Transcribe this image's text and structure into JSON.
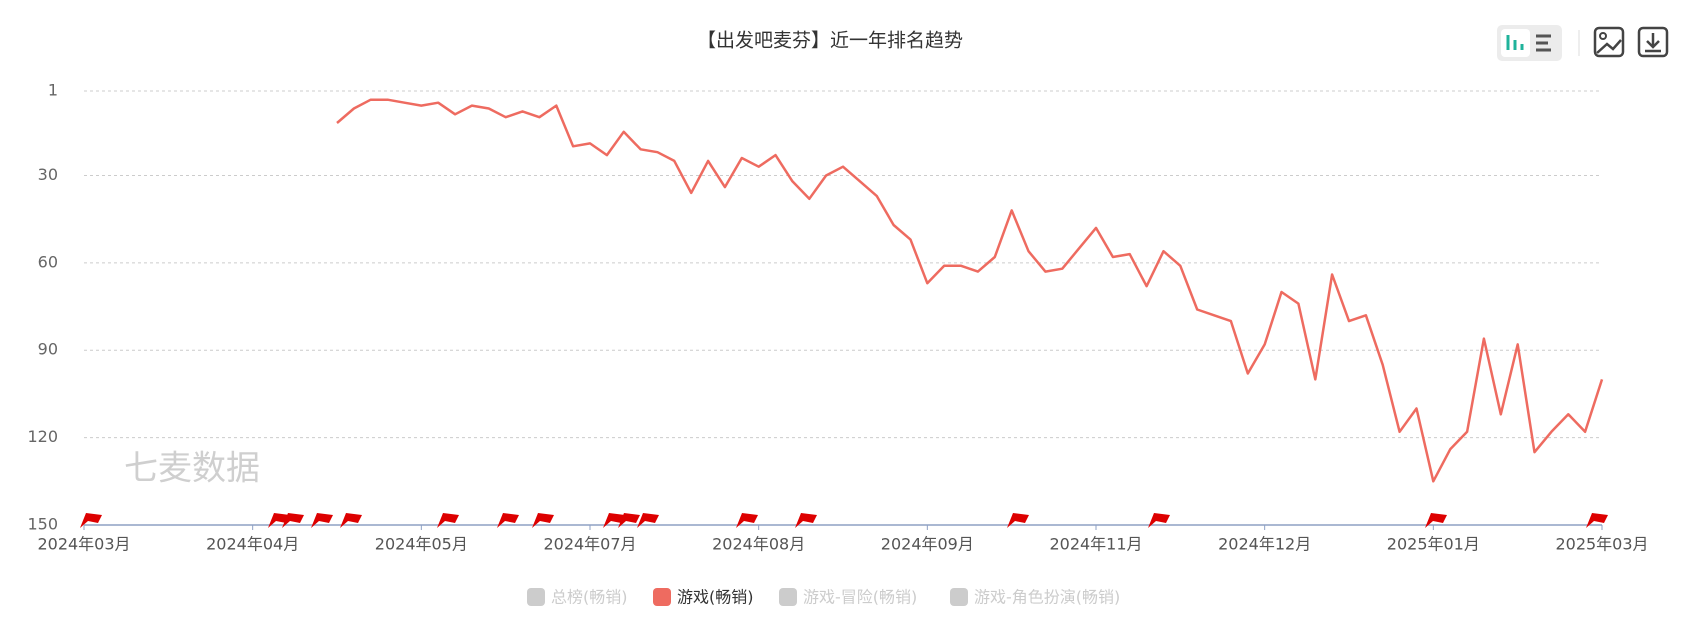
{
  "chart_data": {
    "type": "line",
    "title": "【出发吧麦芬】近一年排名趋势",
    "watermark": "七麦数据",
    "categories": [
      "2024年03月",
      null,
      null,
      null,
      null,
      null,
      null,
      null,
      null,
      null,
      "2024年04月",
      null,
      null,
      null,
      null,
      null,
      null,
      null,
      null,
      null,
      "2024年05月",
      null,
      null,
      null,
      null,
      null,
      null,
      null,
      null,
      null,
      "2024年07月",
      null,
      null,
      null,
      null,
      null,
      null,
      null,
      null,
      null,
      "2024年08月",
      null,
      null,
      null,
      null,
      null,
      null,
      null,
      null,
      null,
      "2024年09月",
      null,
      null,
      null,
      null,
      null,
      null,
      null,
      null,
      null,
      "2024年11月",
      null,
      null,
      null,
      null,
      null,
      null,
      null,
      null,
      null,
      "2024年12月",
      null,
      null,
      null,
      null,
      null,
      null,
      null,
      null,
      null,
      "2025年01月",
      null,
      null,
      null,
      null,
      null,
      null,
      null,
      null,
      null,
      "2025年03月"
    ],
    "series": [
      {
        "color": "#ee6b60",
        "values": [
          null,
          null,
          null,
          null,
          null,
          null,
          null,
          null,
          null,
          null,
          null,
          null,
          null,
          null,
          null,
          12,
          7,
          4,
          4,
          5,
          6,
          5,
          9,
          6,
          7,
          10,
          8,
          10,
          6,
          20,
          19,
          23,
          15,
          21,
          22,
          25,
          36,
          25,
          34,
          24,
          27,
          23,
          32,
          38,
          30,
          27,
          32,
          37,
          47,
          52,
          67,
          61,
          61,
          63,
          58,
          42,
          56,
          63,
          62,
          55,
          48,
          58,
          57,
          68,
          56,
          61,
          76,
          78,
          80,
          98,
          88,
          70,
          74,
          100,
          64,
          80,
          78,
          95,
          118,
          110,
          135,
          124,
          118,
          86,
          112,
          88,
          125,
          118,
          112,
          118,
          100
        ]
      }
    ],
    "legend": [
      {
        "name": "总榜(畅销)",
        "color": "#cccccc"
      },
      {
        "name": "游戏(畅销)",
        "color": "#ee6b60"
      },
      {
        "name": "游戏-冒险(畅销)",
        "color": "#cccccc"
      },
      {
        "name": "游戏-角色扮演(畅销)",
        "color": "#cccccc"
      }
    ],
    "active_legend": 1,
    "ylim": [
      1,
      150
    ],
    "y_inverted": true,
    "yticks": [
      1,
      30,
      60,
      90,
      120,
      150
    ],
    "grid": true
  }
}
